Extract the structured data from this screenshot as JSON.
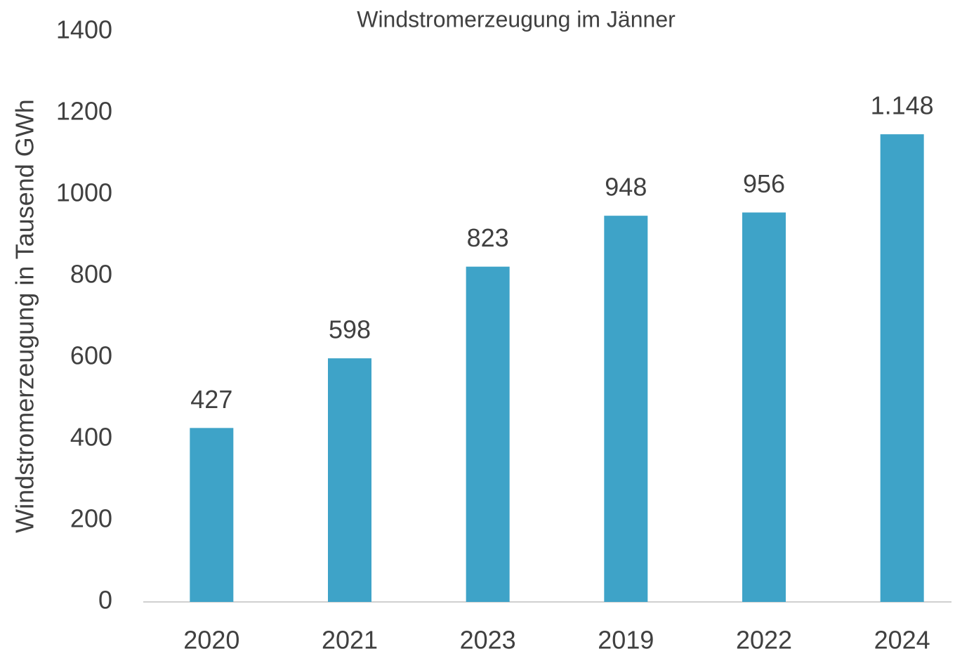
{
  "chart_data": {
    "type": "bar",
    "title": "Windstromerzeugung im Jänner",
    "y_label": "Windstromerzeugung in Tausend GWh",
    "categories": [
      "2020",
      "2021",
      "2023",
      "2019",
      "2022",
      "2024"
    ],
    "values": [
      427,
      598,
      823,
      948,
      956,
      1148
    ],
    "value_labels": [
      "427",
      "598",
      "823",
      "948",
      "956",
      "1.148"
    ],
    "color": "#3ea3c8",
    "ylim": [
      0,
      1400
    ],
    "yticks": [
      0,
      200,
      400,
      600,
      800,
      1000,
      1200,
      1400
    ],
    "grid": false
  }
}
